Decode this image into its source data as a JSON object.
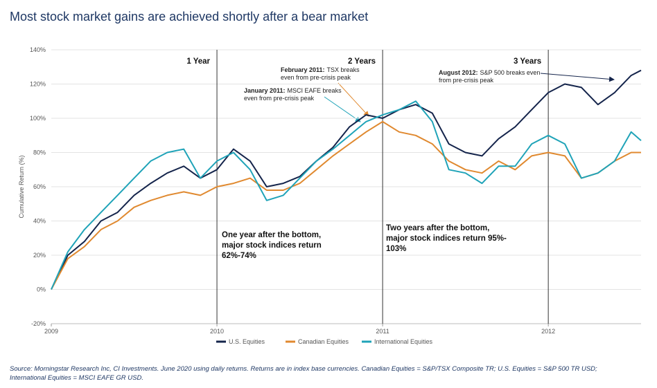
{
  "chart_data": {
    "type": "line",
    "title": "Most stock market gains are achieved shortly after a bear market",
    "ylabel": "Cumulative Return (%)",
    "x": [
      2009.0,
      2009.1,
      2009.2,
      2009.3,
      2009.4,
      2009.5,
      2009.6,
      2009.7,
      2009.8,
      2009.9,
      2010.0,
      2010.1,
      2010.2,
      2010.3,
      2010.4,
      2010.5,
      2010.6,
      2010.7,
      2010.8,
      2010.9,
      2011.0,
      2011.1,
      2011.2,
      2011.3,
      2011.4,
      2011.5,
      2011.6,
      2011.7,
      2011.8,
      2011.9,
      2012.0,
      2012.1,
      2012.2,
      2012.3,
      2012.4,
      2012.5,
      2012.56
    ],
    "series": [
      {
        "name": "U.S. Equities",
        "color": "#14244b",
        "values": [
          0,
          20,
          28,
          40,
          45,
          55,
          62,
          68,
          72,
          65,
          70,
          82,
          75,
          60,
          62,
          66,
          75,
          83,
          95,
          102,
          100,
          105,
          108,
          103,
          85,
          80,
          78,
          88,
          95,
          105,
          115,
          120,
          118,
          108,
          115,
          125,
          128
        ]
      },
      {
        "name": "Canadian Equities",
        "color": "#e0892f",
        "values": [
          0,
          18,
          25,
          35,
          40,
          48,
          52,
          55,
          57,
          55,
          60,
          62,
          65,
          58,
          58,
          62,
          70,
          78,
          85,
          92,
          98,
          92,
          90,
          85,
          75,
          70,
          68,
          75,
          70,
          78,
          80,
          78,
          65,
          68,
          75,
          80,
          80
        ]
      },
      {
        "name": "International Equities",
        "color": "#1fa3b8",
        "values": [
          0,
          22,
          35,
          45,
          55,
          65,
          75,
          80,
          82,
          65,
          75,
          80,
          70,
          52,
          55,
          65,
          75,
          82,
          90,
          98,
          102,
          105,
          110,
          98,
          70,
          68,
          62,
          72,
          72,
          85,
          90,
          85,
          65,
          68,
          75,
          92,
          87
        ]
      }
    ],
    "xlim": [
      2009,
      2012.56
    ],
    "xticks": [
      2009,
      2010,
      2011,
      2012
    ],
    "ylim": [
      -20,
      140
    ],
    "yticks": [
      {
        "value": -20,
        "label": "-20%"
      },
      {
        "value": 0,
        "label": "0%"
      },
      {
        "value": 20,
        "label": "20%"
      },
      {
        "value": 40,
        "label": "40%"
      },
      {
        "value": 60,
        "label": "60%"
      },
      {
        "value": 80,
        "label": "80%"
      },
      {
        "value": 100,
        "label": "100%"
      },
      {
        "value": 120,
        "label": "120%"
      },
      {
        "value": 140,
        "label": "140%"
      }
    ],
    "grid": true,
    "legend": "bottom",
    "period_labels": [
      "1 Year",
      "2 Years",
      "3 Years"
    ],
    "annotations": [
      {
        "head": "February 2011:",
        "lines": [
          "TSX breaks",
          "even from pre-crisis peak"
        ]
      },
      {
        "head": "January 2011:",
        "lines": [
          "MSCI EAFE breaks",
          "even from pre-crisis peak"
        ]
      },
      {
        "head": "August 2012:",
        "lines": [
          "S&P 500 breaks even",
          "from pre-crisis peak"
        ]
      }
    ],
    "notes": [
      {
        "lines": [
          "One year after the bottom,",
          "major stock indices return",
          "62%-74%"
        ]
      },
      {
        "lines": [
          "Two years after the bottom,",
          "major stock indices return 95%-",
          "103%"
        ]
      }
    ],
    "source": [
      "Source: Morningstar Research Inc, CI Investments. June 2020 using daily returns. Returns are in index base currencies. Canadian Equities = S&P/TSX Composite TR; U.S. Equities = S&P 500 TR USD;",
      "International Equities = MSCI EAFE GR USD."
    ]
  }
}
